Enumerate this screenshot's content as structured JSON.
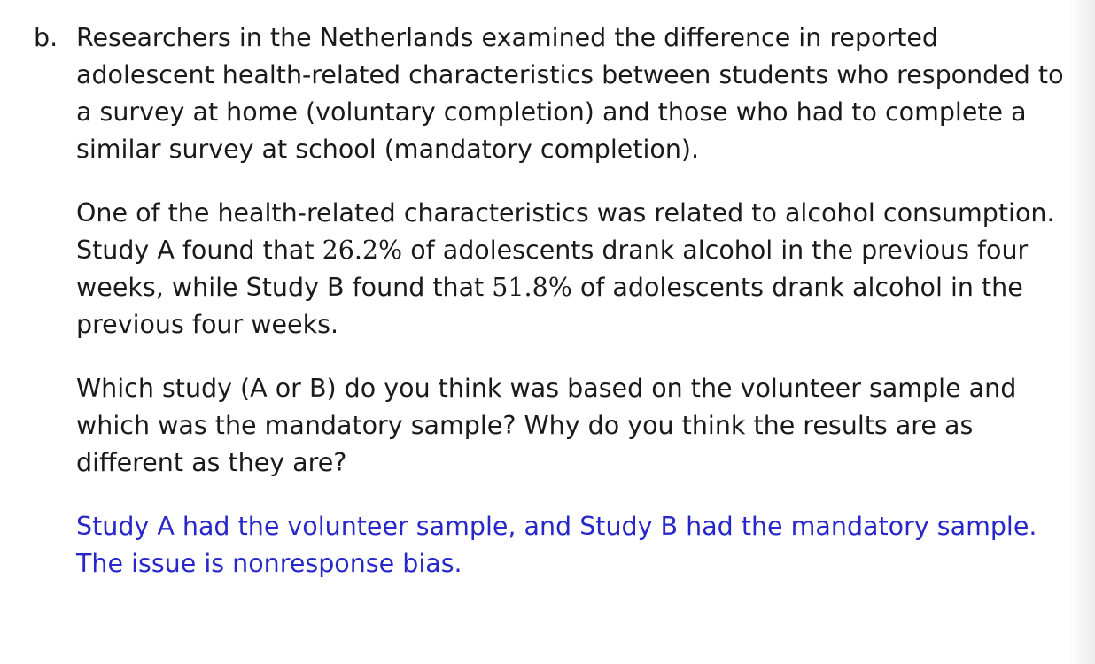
{
  "item_label": "b.",
  "intro": "Researchers in the Netherlands examined the difference in reported adolescent health-related characteristics between students who responded to a survey at home (voluntary completion) and those who had to complete a similar survey at school (mandatory completion).",
  "study_para": {
    "part1": "One of the health-related characteristics was related to alcohol consumption. Study A found that ",
    "pct_a": "26.2%",
    "part2": " of adolescents drank alcohol in the previous four weeks, while Study B found that ",
    "pct_b": "51.8%",
    "part3": " of adolescents drank alcohol in the previous four weeks."
  },
  "question": "Which study (A or B) do you think was based on the volunteer sample and which was the mandatory sample? Why do you think the results are as different as they are?",
  "answer": "Study A had the volunteer sample, and Study B had the mandatory sample. The issue is nonresponse bias.",
  "colors": {
    "text": "#1a1a1a",
    "answer": "#2828c8"
  }
}
